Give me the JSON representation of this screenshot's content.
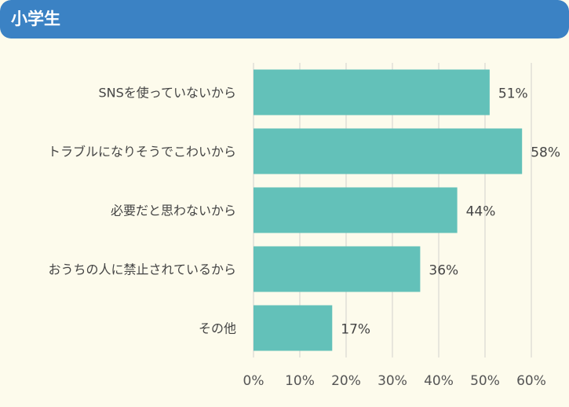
{
  "header": {
    "title": "小学生"
  },
  "colors": {
    "header": "#3b82c4",
    "bar": "#63c1b9",
    "grid": "#d9d9d3",
    "text": "#444444",
    "background": "#fdfbec"
  },
  "chart_data": {
    "type": "bar",
    "orientation": "horizontal",
    "title": "小学生",
    "categories": [
      "SNSを使っていないから",
      "トラブルになりそうでこわいから",
      "必要だと思わないから",
      "おうちの人に禁止されているから",
      "その他"
    ],
    "values": [
      51,
      58,
      44,
      36,
      17
    ],
    "value_labels": [
      "51%",
      "58%",
      "44%",
      "36%",
      "17%"
    ],
    "xlim": [
      0,
      60
    ],
    "xticks": [
      "0%",
      "10%",
      "20%",
      "30%",
      "40%",
      "50%",
      "60%"
    ],
    "grid": "vertical",
    "legend": "none"
  }
}
